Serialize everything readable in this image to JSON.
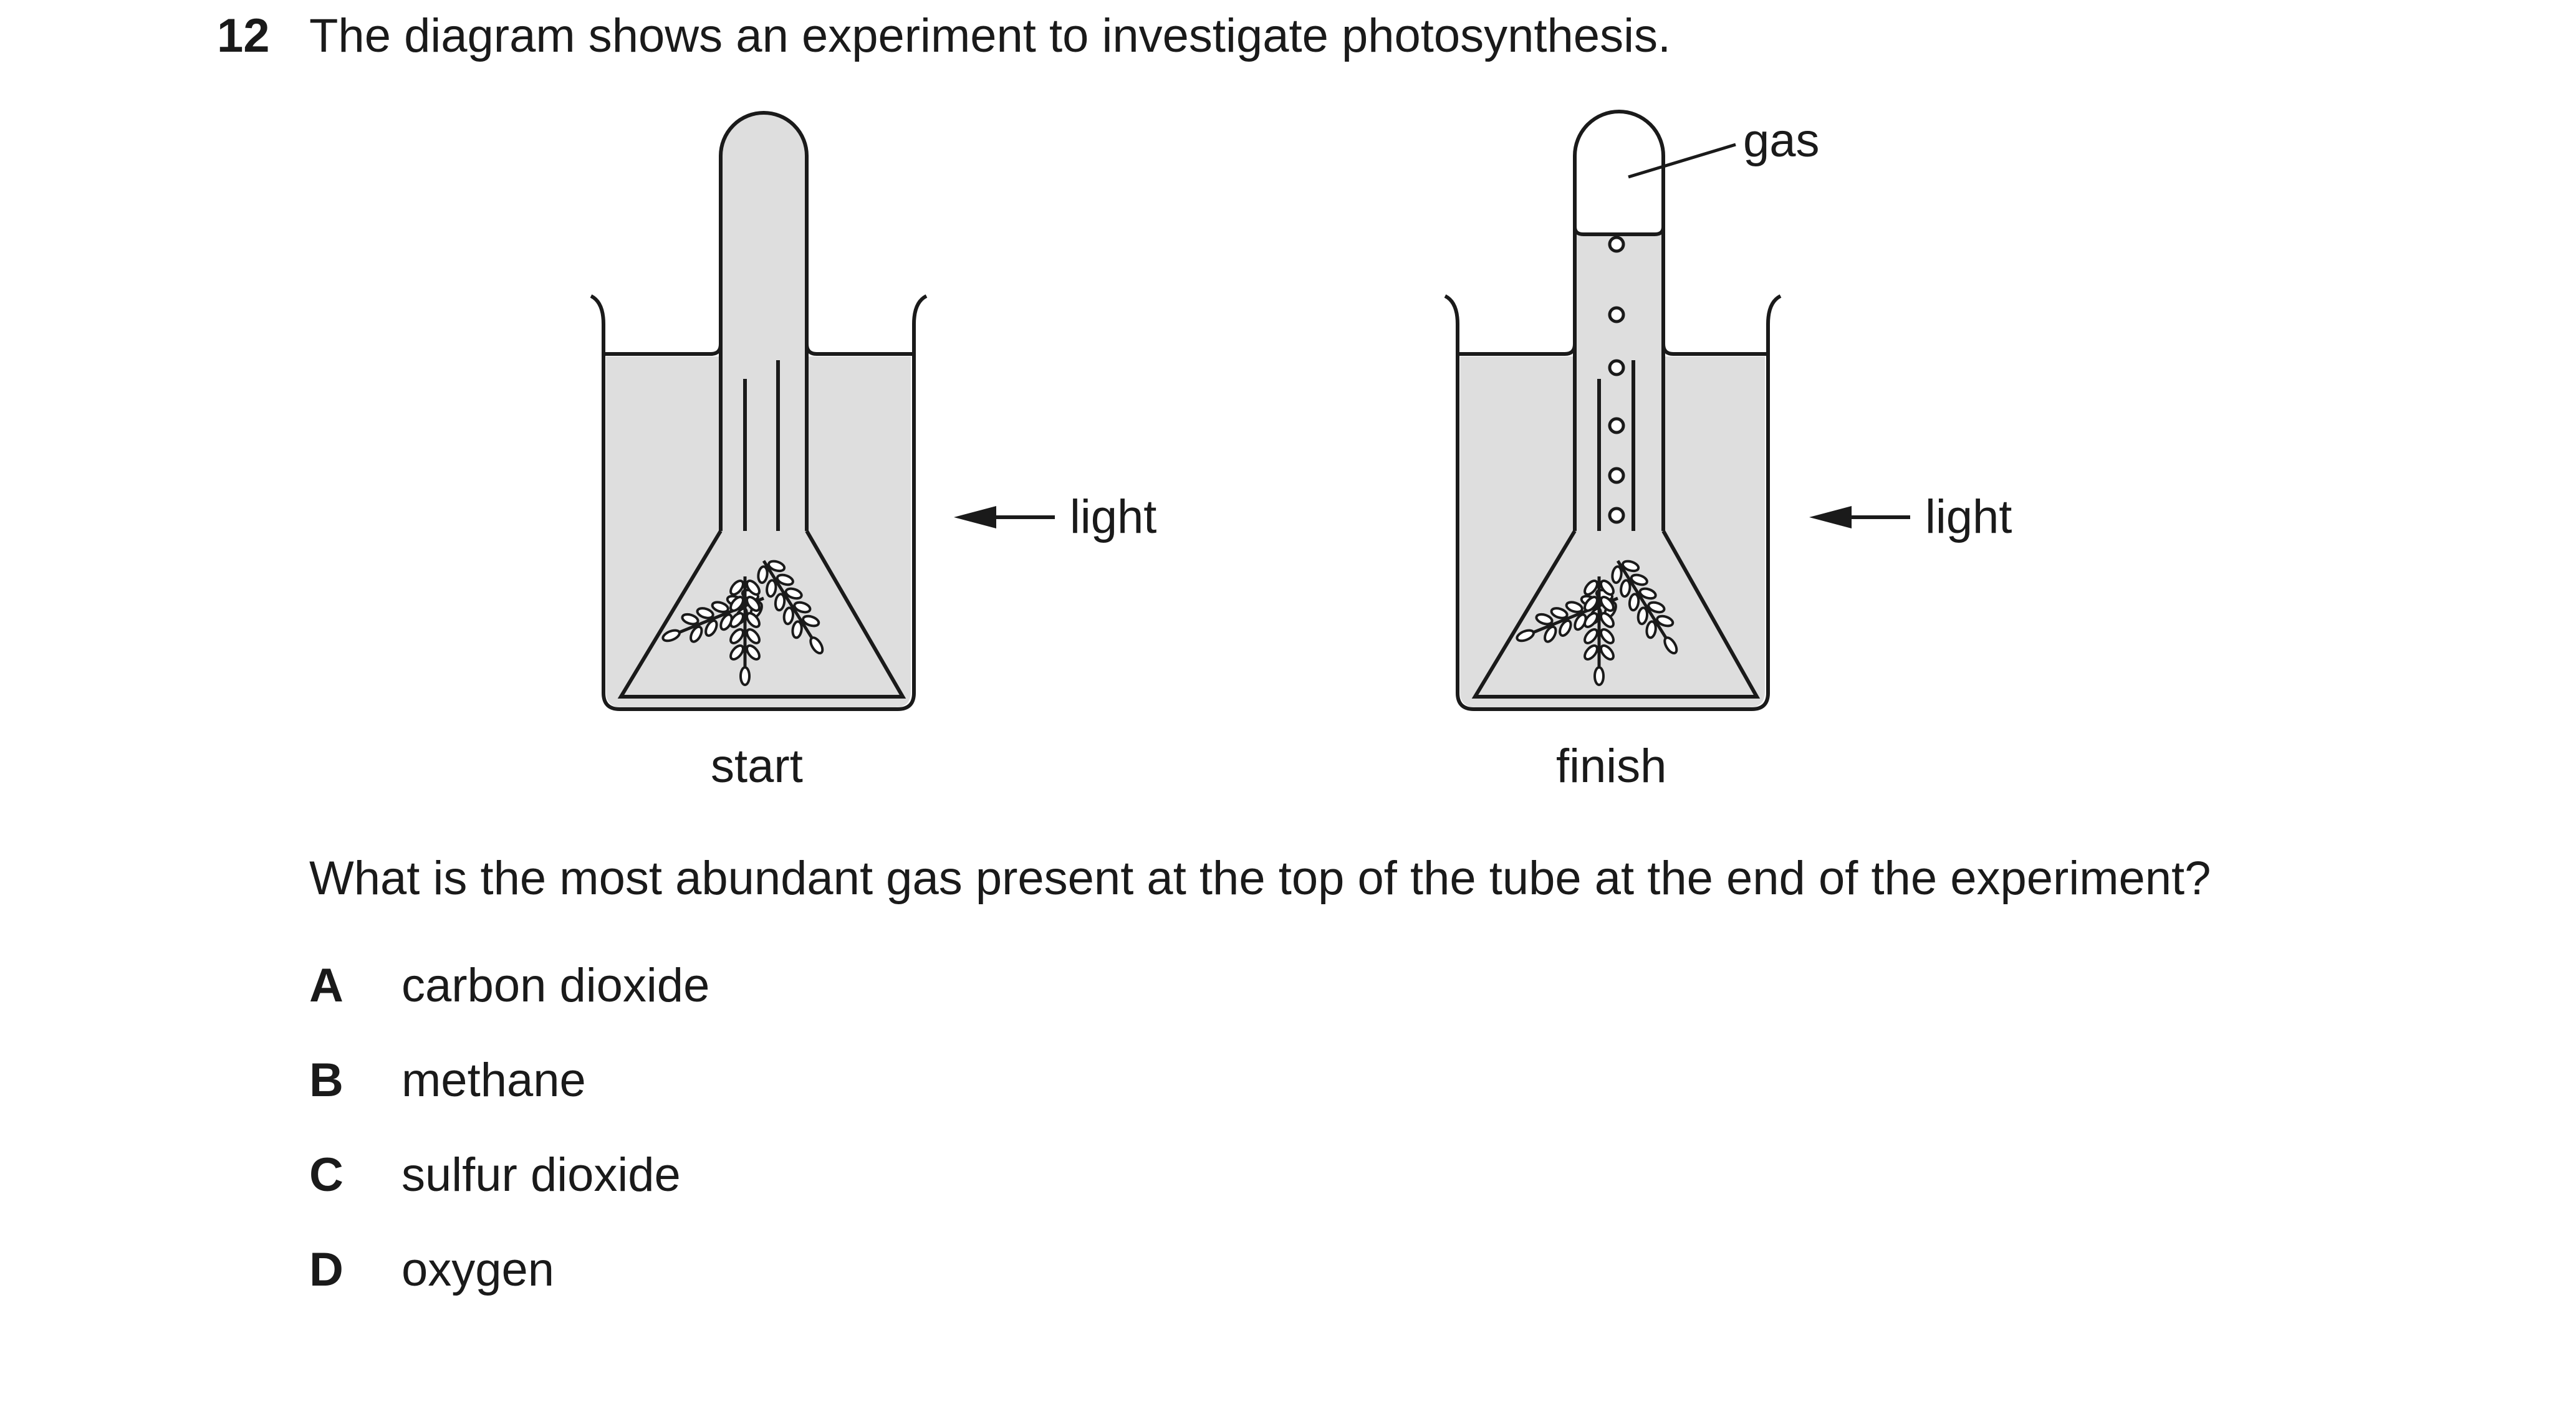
{
  "question": {
    "number": "12",
    "stem": "The diagram shows an experiment to investigate photosynthesis.",
    "prompt": "What is the most abundant gas present at the top of the tube at the end of the experiment?",
    "options": [
      {
        "letter": "A",
        "text": "carbon dioxide"
      },
      {
        "letter": "B",
        "text": "methane"
      },
      {
        "letter": "C",
        "text": "sulfur dioxide"
      },
      {
        "letter": "D",
        "text": "oxygen"
      }
    ]
  },
  "diagram": {
    "start_caption": "start",
    "finish_caption": "finish",
    "light_label_start": "light",
    "light_label_finish": "light",
    "gas_label": "gas"
  }
}
